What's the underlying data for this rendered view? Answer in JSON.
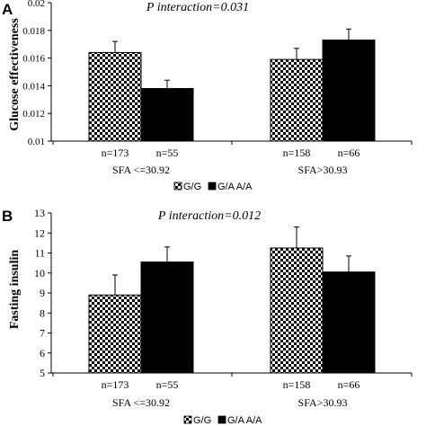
{
  "chart_data": [
    {
      "panel_label": "A",
      "type": "bar",
      "annotation": "P interaction=0.031",
      "ylabel": "Glucose effectiveness",
      "ylim": [
        0.01,
        0.02
      ],
      "yticks": [
        "0.01",
        "0.012",
        "0.014",
        "0.016",
        "0.018",
        "0.02"
      ],
      "groups": [
        "SFA <=30.92",
        "SFA>30.93"
      ],
      "n_labels": [
        [
          "n=173",
          "n=55"
        ],
        [
          "n=158",
          "n=66"
        ]
      ],
      "series": [
        {
          "name": "G/G",
          "values": [
            0.0164,
            0.0159
          ],
          "errors": [
            0.0008,
            0.0008
          ],
          "color": "checker"
        },
        {
          "name": "G/A A/A",
          "values": [
            0.0138,
            0.0173
          ],
          "errors": [
            0.0006,
            0.0008
          ],
          "color": "#000000"
        }
      ],
      "legend": [
        "G/G",
        "G/A A/A"
      ],
      "legend_position": "bottom"
    },
    {
      "panel_label": "B",
      "type": "bar",
      "annotation": "P interaction=0.012",
      "ylabel": "Fasting insulin",
      "ylim": [
        5,
        13
      ],
      "yticks": [
        "5",
        "6",
        "7",
        "8",
        "9",
        "10",
        "11",
        "12",
        "13"
      ],
      "groups": [
        "SFA <=30.92",
        "SFA>30.93"
      ],
      "n_labels": [
        [
          "n=173",
          "n=55"
        ],
        [
          "n=158",
          "n=66"
        ]
      ],
      "series": [
        {
          "name": "G/G",
          "values": [
            8.9,
            11.25
          ],
          "errors": [
            1.0,
            1.05
          ],
          "color": "checker"
        },
        {
          "name": "G/A A/A",
          "values": [
            10.55,
            10.05
          ],
          "errors": [
            0.75,
            0.8
          ],
          "color": "#000000"
        }
      ],
      "legend": [
        "G/G",
        "G/A A/A"
      ],
      "legend_position": "bottom"
    }
  ]
}
